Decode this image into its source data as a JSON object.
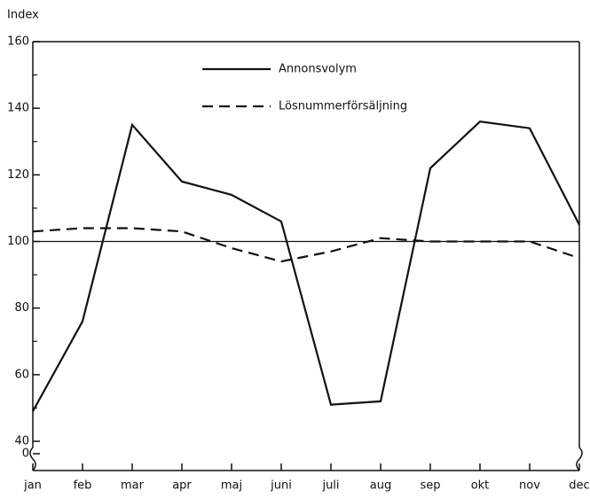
{
  "chart_data": {
    "type": "line",
    "y_label": "Index",
    "categories": [
      "jan",
      "feb",
      "mar",
      "apr",
      "maj",
      "juni",
      "juli",
      "aug",
      "sep",
      "okt",
      "nov",
      "dec"
    ],
    "series": [
      {
        "name": "Annonsvolym",
        "color": "#111111",
        "dash": "solid",
        "values": [
          49,
          76,
          135,
          118,
          114,
          106,
          51,
          52,
          122,
          136,
          134,
          105
        ]
      },
      {
        "name": "Lösnummerförsäljning",
        "color": "#111111",
        "dash": "dashed",
        "values": [
          103,
          104,
          104,
          103,
          98,
          94,
          97,
          101,
          100,
          100,
          100,
          95
        ]
      }
    ],
    "reference_line": 100,
    "ylim": [
      0,
      160
    ],
    "axis_break": 40,
    "yticks": [
      0,
      40,
      60,
      80,
      100,
      120,
      140,
      160
    ],
    "minor_yticks": [
      50,
      70,
      90,
      110,
      130,
      150
    ],
    "legend": "top"
  }
}
